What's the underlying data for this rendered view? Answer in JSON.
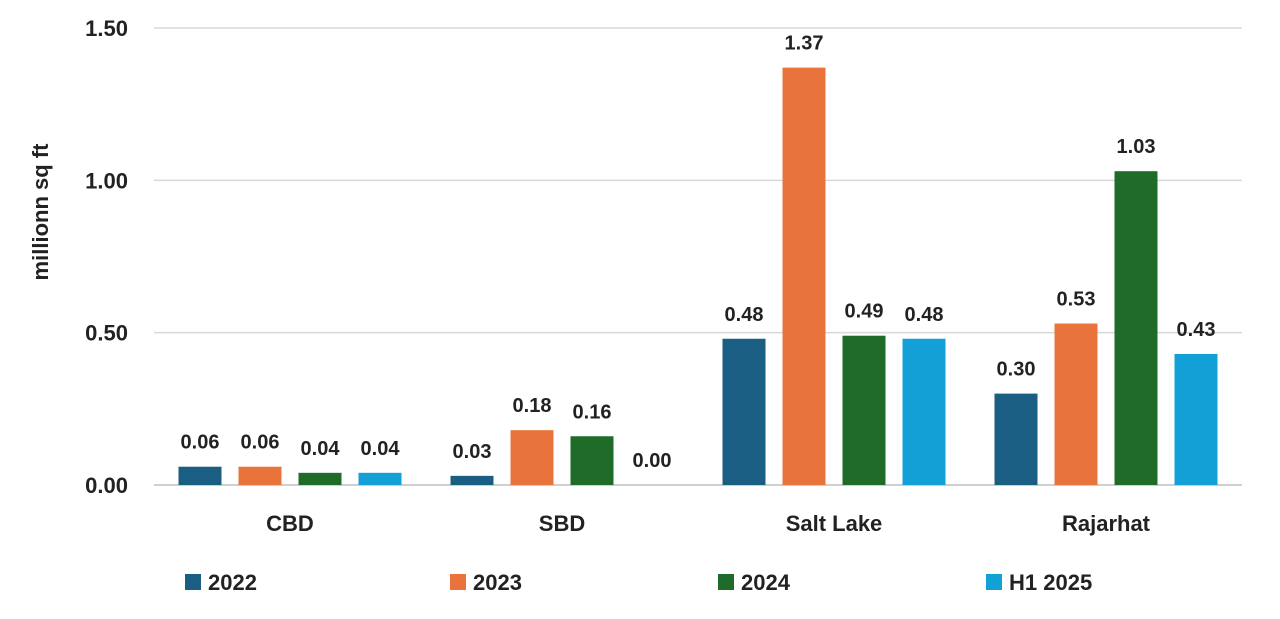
{
  "chart_data": {
    "type": "bar",
    "ylabel": "millionn sq ft",
    "ylim": [
      0,
      1.5
    ],
    "yticks": [
      0,
      0.5,
      1.0,
      1.5
    ],
    "ytick_labels": [
      "0.00",
      "0.50",
      "1.00",
      "1.50"
    ],
    "grid": true,
    "legend_position": "bottom",
    "categories": [
      "CBD",
      "SBD",
      "Salt Lake",
      "Rajarhat"
    ],
    "series": [
      {
        "name": "2022",
        "color": "#1b5e84",
        "values": [
          0.06,
          0.03,
          0.48,
          0.3
        ],
        "labels": [
          "0.06",
          "0.03",
          "0.48",
          "0.30"
        ]
      },
      {
        "name": "2023",
        "color": "#e8743b",
        "values": [
          0.06,
          0.18,
          1.37,
          0.53
        ],
        "labels": [
          "0.06",
          "0.18",
          "1.37",
          "0.53"
        ]
      },
      {
        "name": "2024",
        "color": "#1f6b2a",
        "values": [
          0.04,
          0.16,
          0.49,
          1.03
        ],
        "labels": [
          "0.04",
          "0.16",
          "0.49",
          "1.03"
        ]
      },
      {
        "name": "H1 2025",
        "color": "#12a0d6",
        "values": [
          0.04,
          0.0,
          0.48,
          0.43
        ],
        "labels": [
          "0.04",
          "0.00",
          "0.48",
          "0.43"
        ]
      }
    ]
  }
}
